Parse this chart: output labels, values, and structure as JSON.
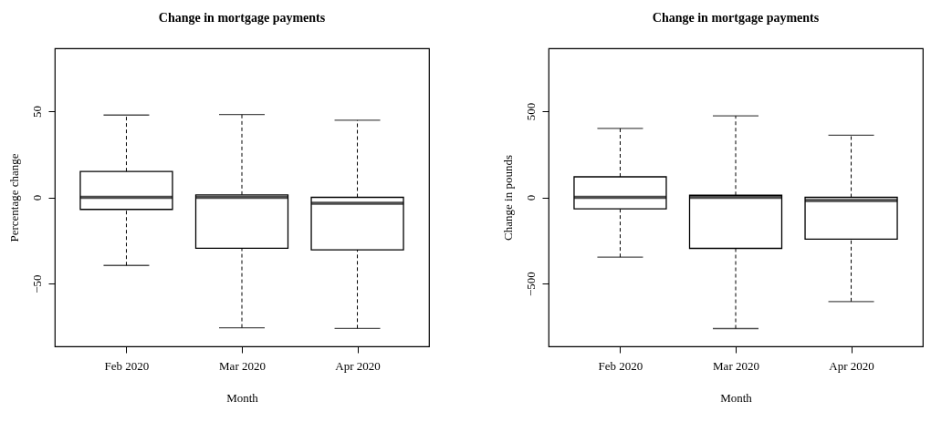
{
  "chart_data": [
    {
      "type": "box",
      "title": "Change in mortgage payments",
      "xlabel": "Month",
      "ylabel": "Percentage change",
      "categories": [
        "Feb 2020",
        "Mar 2020",
        "Apr 2020"
      ],
      "boxes": [
        {
          "low": -39.5,
          "q1": -7,
          "median": 0,
          "q3": 15,
          "high": 47.7
        },
        {
          "low": -75.6,
          "q1": -29.5,
          "median": 0,
          "q3": 1.4,
          "high": 48
        },
        {
          "low": -76,
          "q1": -30.4,
          "median": -3.5,
          "q3": 0,
          "high": 44.7
        }
      ],
      "ylim": [
        -86.4,
        86.4
      ],
      "yticks": [
        -50,
        0,
        50
      ]
    },
    {
      "type": "box",
      "title": "Change in mortgage payments",
      "xlabel": "Month",
      "ylabel": "Change in pounds",
      "categories": [
        "Feb 2020",
        "Mar 2020",
        "Apr 2020"
      ],
      "boxes": [
        {
          "low": -347,
          "q1": -67,
          "median": 0,
          "q3": 119,
          "high": 400
        },
        {
          "low": -761,
          "q1": -296,
          "median": 0,
          "q3": 12,
          "high": 472
        },
        {
          "low": -604,
          "q1": -242,
          "median": -19,
          "q3": 0,
          "high": 360
        }
      ],
      "ylim": [
        -864,
        864
      ],
      "yticks": [
        -500,
        0,
        500
      ]
    }
  ]
}
